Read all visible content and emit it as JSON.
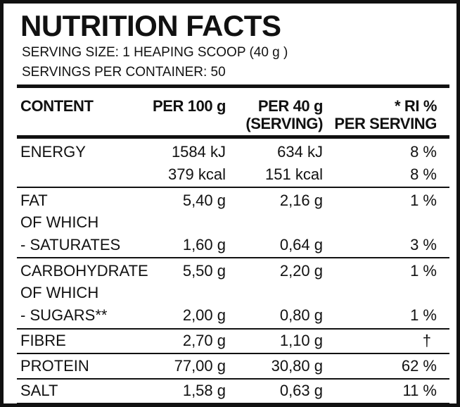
{
  "title": "NUTRITION FACTS",
  "serving_size": "SERVING SIZE: 1 HEAPING SCOOP (40 g )",
  "servings_per_container": "SERVINGS PER CONTAINER: 50",
  "header": {
    "content": "CONTENT",
    "per100": "PER 100 g",
    "per40_line1": "PER 40 g",
    "per40_line2": "(SERVING)",
    "ri_line1": "* RI %",
    "ri_line2": "PER SERVING"
  },
  "rows": {
    "energy_kj": {
      "label": "ENERGY",
      "per100": "1584 kJ",
      "per40": "634 kJ",
      "ri": "8 %"
    },
    "energy_kcal": {
      "label": "",
      "per100": "379 kcal",
      "per40": "151 kcal",
      "ri": "8 %"
    },
    "fat": {
      "label": "FAT",
      "per100": "5,40 g",
      "per40": "2,16 g",
      "ri": "1 %"
    },
    "fat_of_which": {
      "label": "OF WHICH"
    },
    "saturates": {
      "label": "- SATURATES",
      "per100": "1,60 g",
      "per40": "0,64 g",
      "ri": "3 %"
    },
    "carbohydrate": {
      "label": "CARBOHYDRATE",
      "per100": "5,50 g",
      "per40": "2,20 g",
      "ri": "1 %"
    },
    "carb_of_which": {
      "label": "OF WHICH"
    },
    "sugars": {
      "label": "- SUGARS**",
      "per100": "2,00 g",
      "per40": "0,80 g",
      "ri": "1 %"
    },
    "fibre": {
      "label": "FIBRE",
      "per100": "2,70 g",
      "per40": "1,10 g",
      "ri": "†"
    },
    "protein": {
      "label": "PROTEIN",
      "per100": "77,00 g",
      "per40": "30,80 g",
      "ri": "62 %"
    },
    "salt": {
      "label": "SALT",
      "per100": "1,58 g",
      "per40": "0,63 g",
      "ri": "11 %"
    }
  }
}
